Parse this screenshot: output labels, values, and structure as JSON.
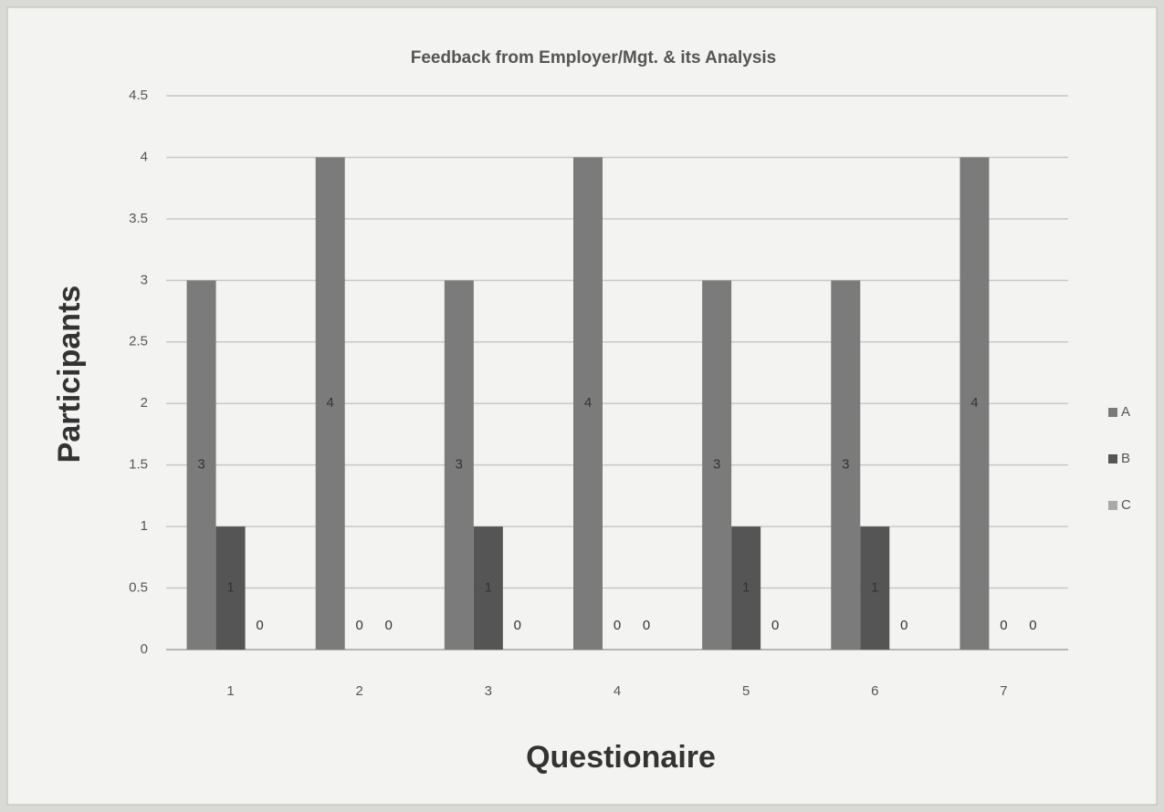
{
  "chart_data": {
    "type": "bar",
    "title": "Feedback from Employer/Mgt. & its Analysis",
    "x_label": "Questionaire",
    "y_label": "Participants",
    "categories": [
      "1",
      "2",
      "3",
      "4",
      "5",
      "6",
      "7"
    ],
    "series": [
      {
        "name": "A",
        "color": "#7b7b7b",
        "values": [
          3,
          4,
          3,
          4,
          3,
          3,
          4
        ]
      },
      {
        "name": "B",
        "color": "#555555",
        "values": [
          1,
          0,
          1,
          0,
          1,
          1,
          0
        ]
      },
      {
        "name": "C",
        "color": "#a9a9a9",
        "values": [
          0,
          0,
          0,
          0,
          0,
          0,
          0
        ]
      }
    ],
    "ylim": [
      0,
      4.5
    ],
    "yticks": [
      0,
      0.5,
      1,
      1.5,
      2,
      2.5,
      3,
      3.5,
      4,
      4.5
    ],
    "grid": true,
    "legend": "right"
  }
}
